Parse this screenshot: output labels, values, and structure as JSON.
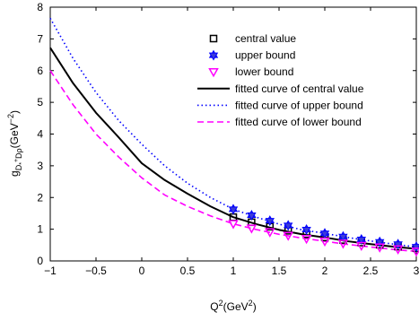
{
  "chart_data": {
    "type": "line",
    "xlim": [
      -1,
      3
    ],
    "ylim": [
      0,
      8
    ],
    "xticks": [
      -1,
      -0.5,
      0,
      0.5,
      1,
      1.5,
      2,
      2.5,
      3
    ],
    "xtick_labels": [
      "−1",
      "−0.5",
      "0",
      "0.5",
      "1",
      "1.5",
      "2",
      "2.5",
      "3"
    ],
    "yticks": [
      0,
      1,
      2,
      3,
      4,
      5,
      6,
      7,
      8
    ],
    "ytick_labels": [
      "0",
      "1",
      "2",
      "3",
      "4",
      "5",
      "6",
      "7",
      "8"
    ],
    "xlabel": {
      "base": "Q",
      "sup": "2",
      "rest": "(GeV",
      "sup2": "2",
      "end": ")"
    },
    "ylabel": "g_{D*Dρ}(Q²)(GeV⁻²)",
    "ylabel_parts": {
      "a": "g",
      "sub": "D",
      "subsub": "*",
      "subsup": "+",
      "mid": "D",
      "rho": "ρ",
      "rest": "(GeV",
      "sup": "−2",
      "end": ")"
    },
    "grid": false,
    "legend_position": "top-right",
    "points_x": [
      1.0,
      1.2,
      1.4,
      1.6,
      1.8,
      2.0,
      2.2,
      2.4,
      2.6,
      2.8,
      3.0
    ],
    "series": [
      {
        "name": "central value",
        "kind": "markers",
        "marker": "square",
        "color": "#000000",
        "values": [
          1.38,
          1.22,
          1.08,
          0.95,
          0.84,
          0.74,
          0.66,
          0.58,
          0.51,
          0.45,
          0.4
        ]
      },
      {
        "name": "upper bound",
        "kind": "markers",
        "marker": "hexagram",
        "color": "#0000ff",
        "values": [
          1.63,
          1.44,
          1.27,
          1.12,
          0.99,
          0.87,
          0.77,
          0.68,
          0.6,
          0.53,
          0.45
        ]
      },
      {
        "name": "lower bound",
        "kind": "markers",
        "marker": "triangle-down",
        "color": "#ff00ff",
        "values": [
          1.17,
          1.03,
          0.91,
          0.8,
          0.7,
          0.62,
          0.55,
          0.48,
          0.43,
          0.37,
          0.3
        ]
      },
      {
        "name": "fitted curve of central value",
        "kind": "line",
        "dash": "solid",
        "color": "#000000",
        "x": [
          -1,
          -0.75,
          -0.5,
          -0.25,
          0,
          0.25,
          0.5,
          0.75,
          1,
          1.25,
          1.5,
          1.75,
          2,
          2.25,
          2.5,
          2.75,
          3
        ],
        "values": [
          6.72,
          5.6,
          4.67,
          3.89,
          3.08,
          2.55,
          2.12,
          1.72,
          1.38,
          1.16,
          0.98,
          0.84,
          0.74,
          0.62,
          0.53,
          0.45,
          0.38
        ]
      },
      {
        "name": "fitted curve of upper bound",
        "kind": "line",
        "dash": "dotted",
        "color": "#0000ff",
        "x": [
          -1,
          -0.75,
          -0.5,
          -0.25,
          0,
          0.25,
          0.5,
          0.75,
          1,
          1.25,
          1.5,
          1.75,
          2,
          2.25,
          2.5,
          2.75,
          3
        ],
        "values": [
          7.65,
          6.38,
          5.31,
          4.42,
          3.68,
          3.0,
          2.45,
          2.0,
          1.63,
          1.38,
          1.16,
          0.98,
          0.87,
          0.74,
          0.63,
          0.53,
          0.44
        ]
      },
      {
        "name": "fitted curve of lower bound",
        "kind": "line",
        "dash": "dashed",
        "color": "#ff00ff",
        "x": [
          -1,
          -0.75,
          -0.5,
          -0.25,
          0,
          0.25,
          0.5,
          0.75,
          1,
          1.25,
          1.5,
          1.75,
          2,
          2.25,
          2.5,
          2.75,
          3
        ],
        "values": [
          6.0,
          4.92,
          4.0,
          3.27,
          2.62,
          2.08,
          1.72,
          1.42,
          1.17,
          0.99,
          0.84,
          0.72,
          0.62,
          0.52,
          0.44,
          0.36,
          0.3
        ]
      }
    ]
  }
}
